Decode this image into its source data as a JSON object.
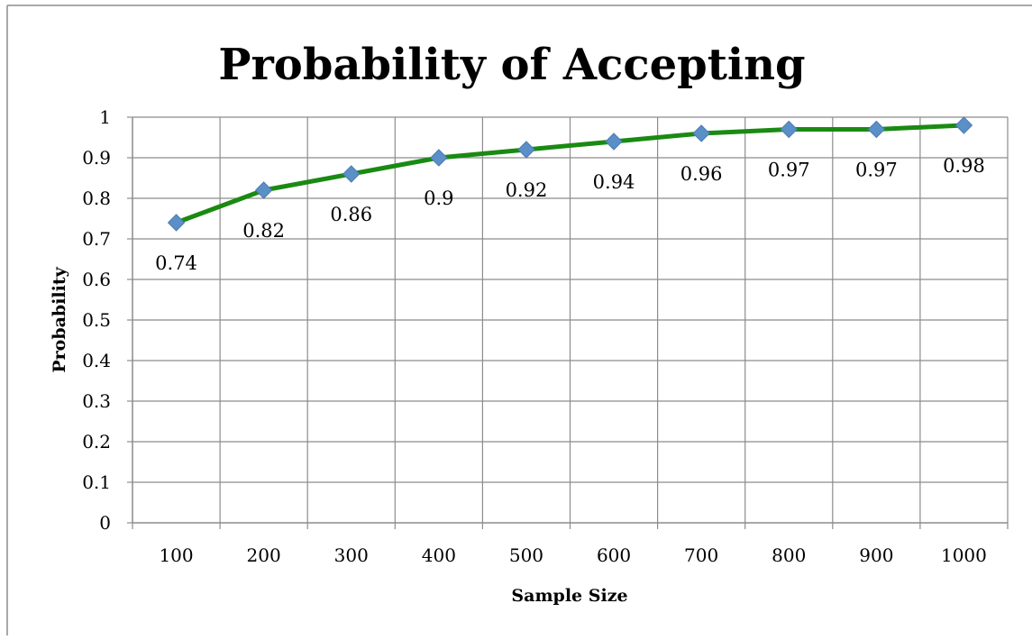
{
  "chart_data": {
    "type": "line",
    "title": "Probability of Accepting",
    "xlabel": "Sample Size",
    "ylabel": "Probability",
    "categories": [
      "100",
      "200",
      "300",
      "400",
      "500",
      "600",
      "700",
      "800",
      "900",
      "1000"
    ],
    "series": [
      {
        "values": [
          0.74,
          0.82,
          0.86,
          0.9,
          0.92,
          0.94,
          0.96,
          0.97,
          0.97,
          0.98
        ]
      }
    ],
    "data_labels": [
      "0.74",
      "0.82",
      "0.86",
      "0.9",
      "0.92",
      "0.94",
      "0.96",
      "0.97",
      "0.97",
      "0.98"
    ],
    "ylim": [
      0,
      1
    ],
    "y_ticks": [
      "0",
      "0.1",
      "0.2",
      "0.3",
      "0.4",
      "0.5",
      "0.6",
      "0.7",
      "0.8",
      "0.9",
      "1"
    ],
    "grid": true,
    "legend": "none",
    "colors": {
      "line": "#1a8a12",
      "marker": "#5b8fc7",
      "grid": "#8c8c8c",
      "frame": "#8c8c8c"
    }
  }
}
